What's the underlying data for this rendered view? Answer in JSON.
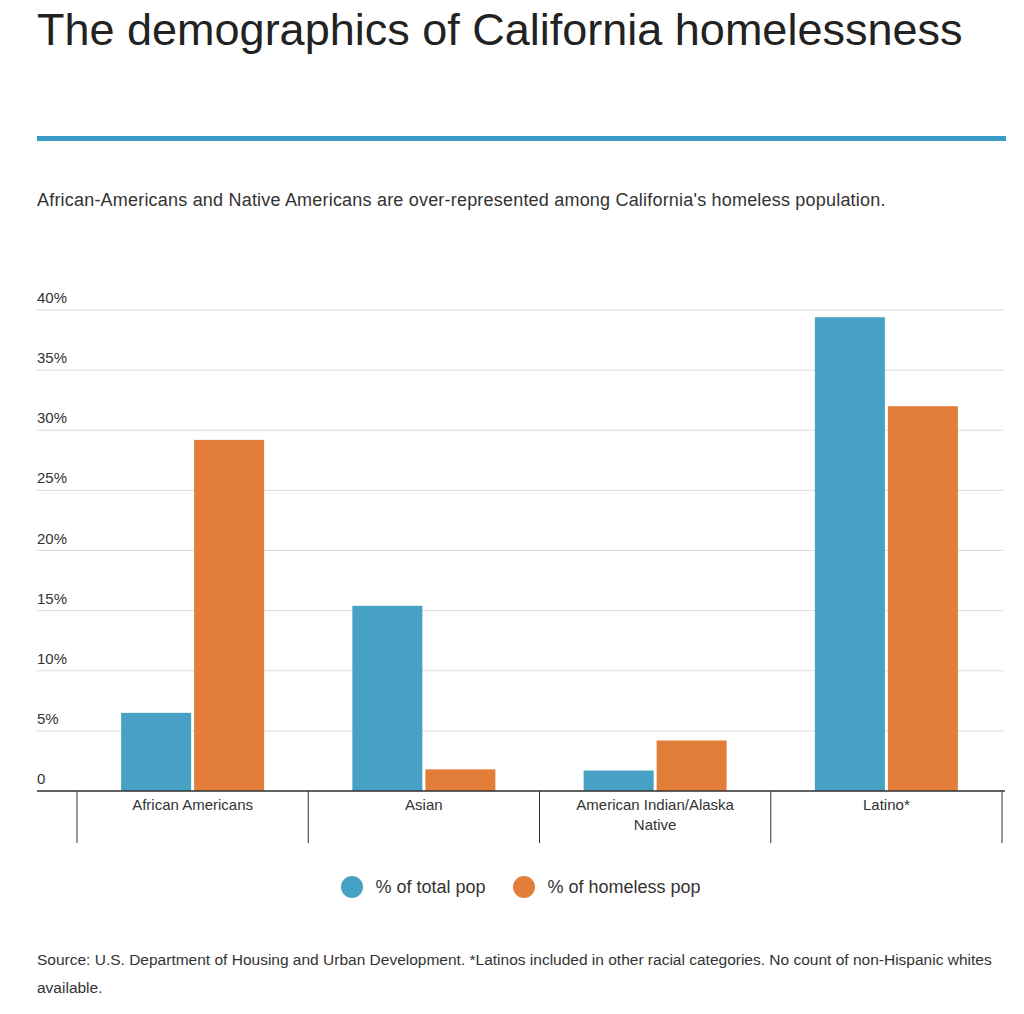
{
  "chart_data": {
    "type": "bar",
    "title": "The demographics of California homelessness",
    "subtitle": "African-Americans and Native Americans are over-represented among California's homeless population.",
    "source": "Source: U.S. Department of Housing and Urban Development. *Latinos included in other racial categories. No count of non-Hispanic whites available.",
    "categories": [
      "African Americans",
      "Asian",
      "American Indian/Alaska Native",
      "Latino*"
    ],
    "series": [
      {
        "name": "% of total pop",
        "color": "#47a1c4",
        "values": [
          6.5,
          15.4,
          1.7,
          39.4
        ]
      },
      {
        "name": "% of homeless pop",
        "color": "#e27e39",
        "values": [
          29.2,
          1.8,
          4.2,
          32.0
        ]
      }
    ],
    "ylim": [
      0,
      40
    ],
    "yticks": [
      0,
      {
        "value": 5,
        "label": "5%"
      },
      {
        "value": 10,
        "label": "10%"
      },
      {
        "value": 15,
        "label": "15%"
      },
      {
        "value": 20,
        "label": "20%"
      },
      {
        "value": 25,
        "label": "25%"
      },
      {
        "value": 30,
        "label": "30%"
      },
      {
        "value": 35,
        "label": "35%"
      },
      {
        "value": 40,
        "label": "40%"
      }
    ],
    "grid": true,
    "legend": "bottom"
  }
}
